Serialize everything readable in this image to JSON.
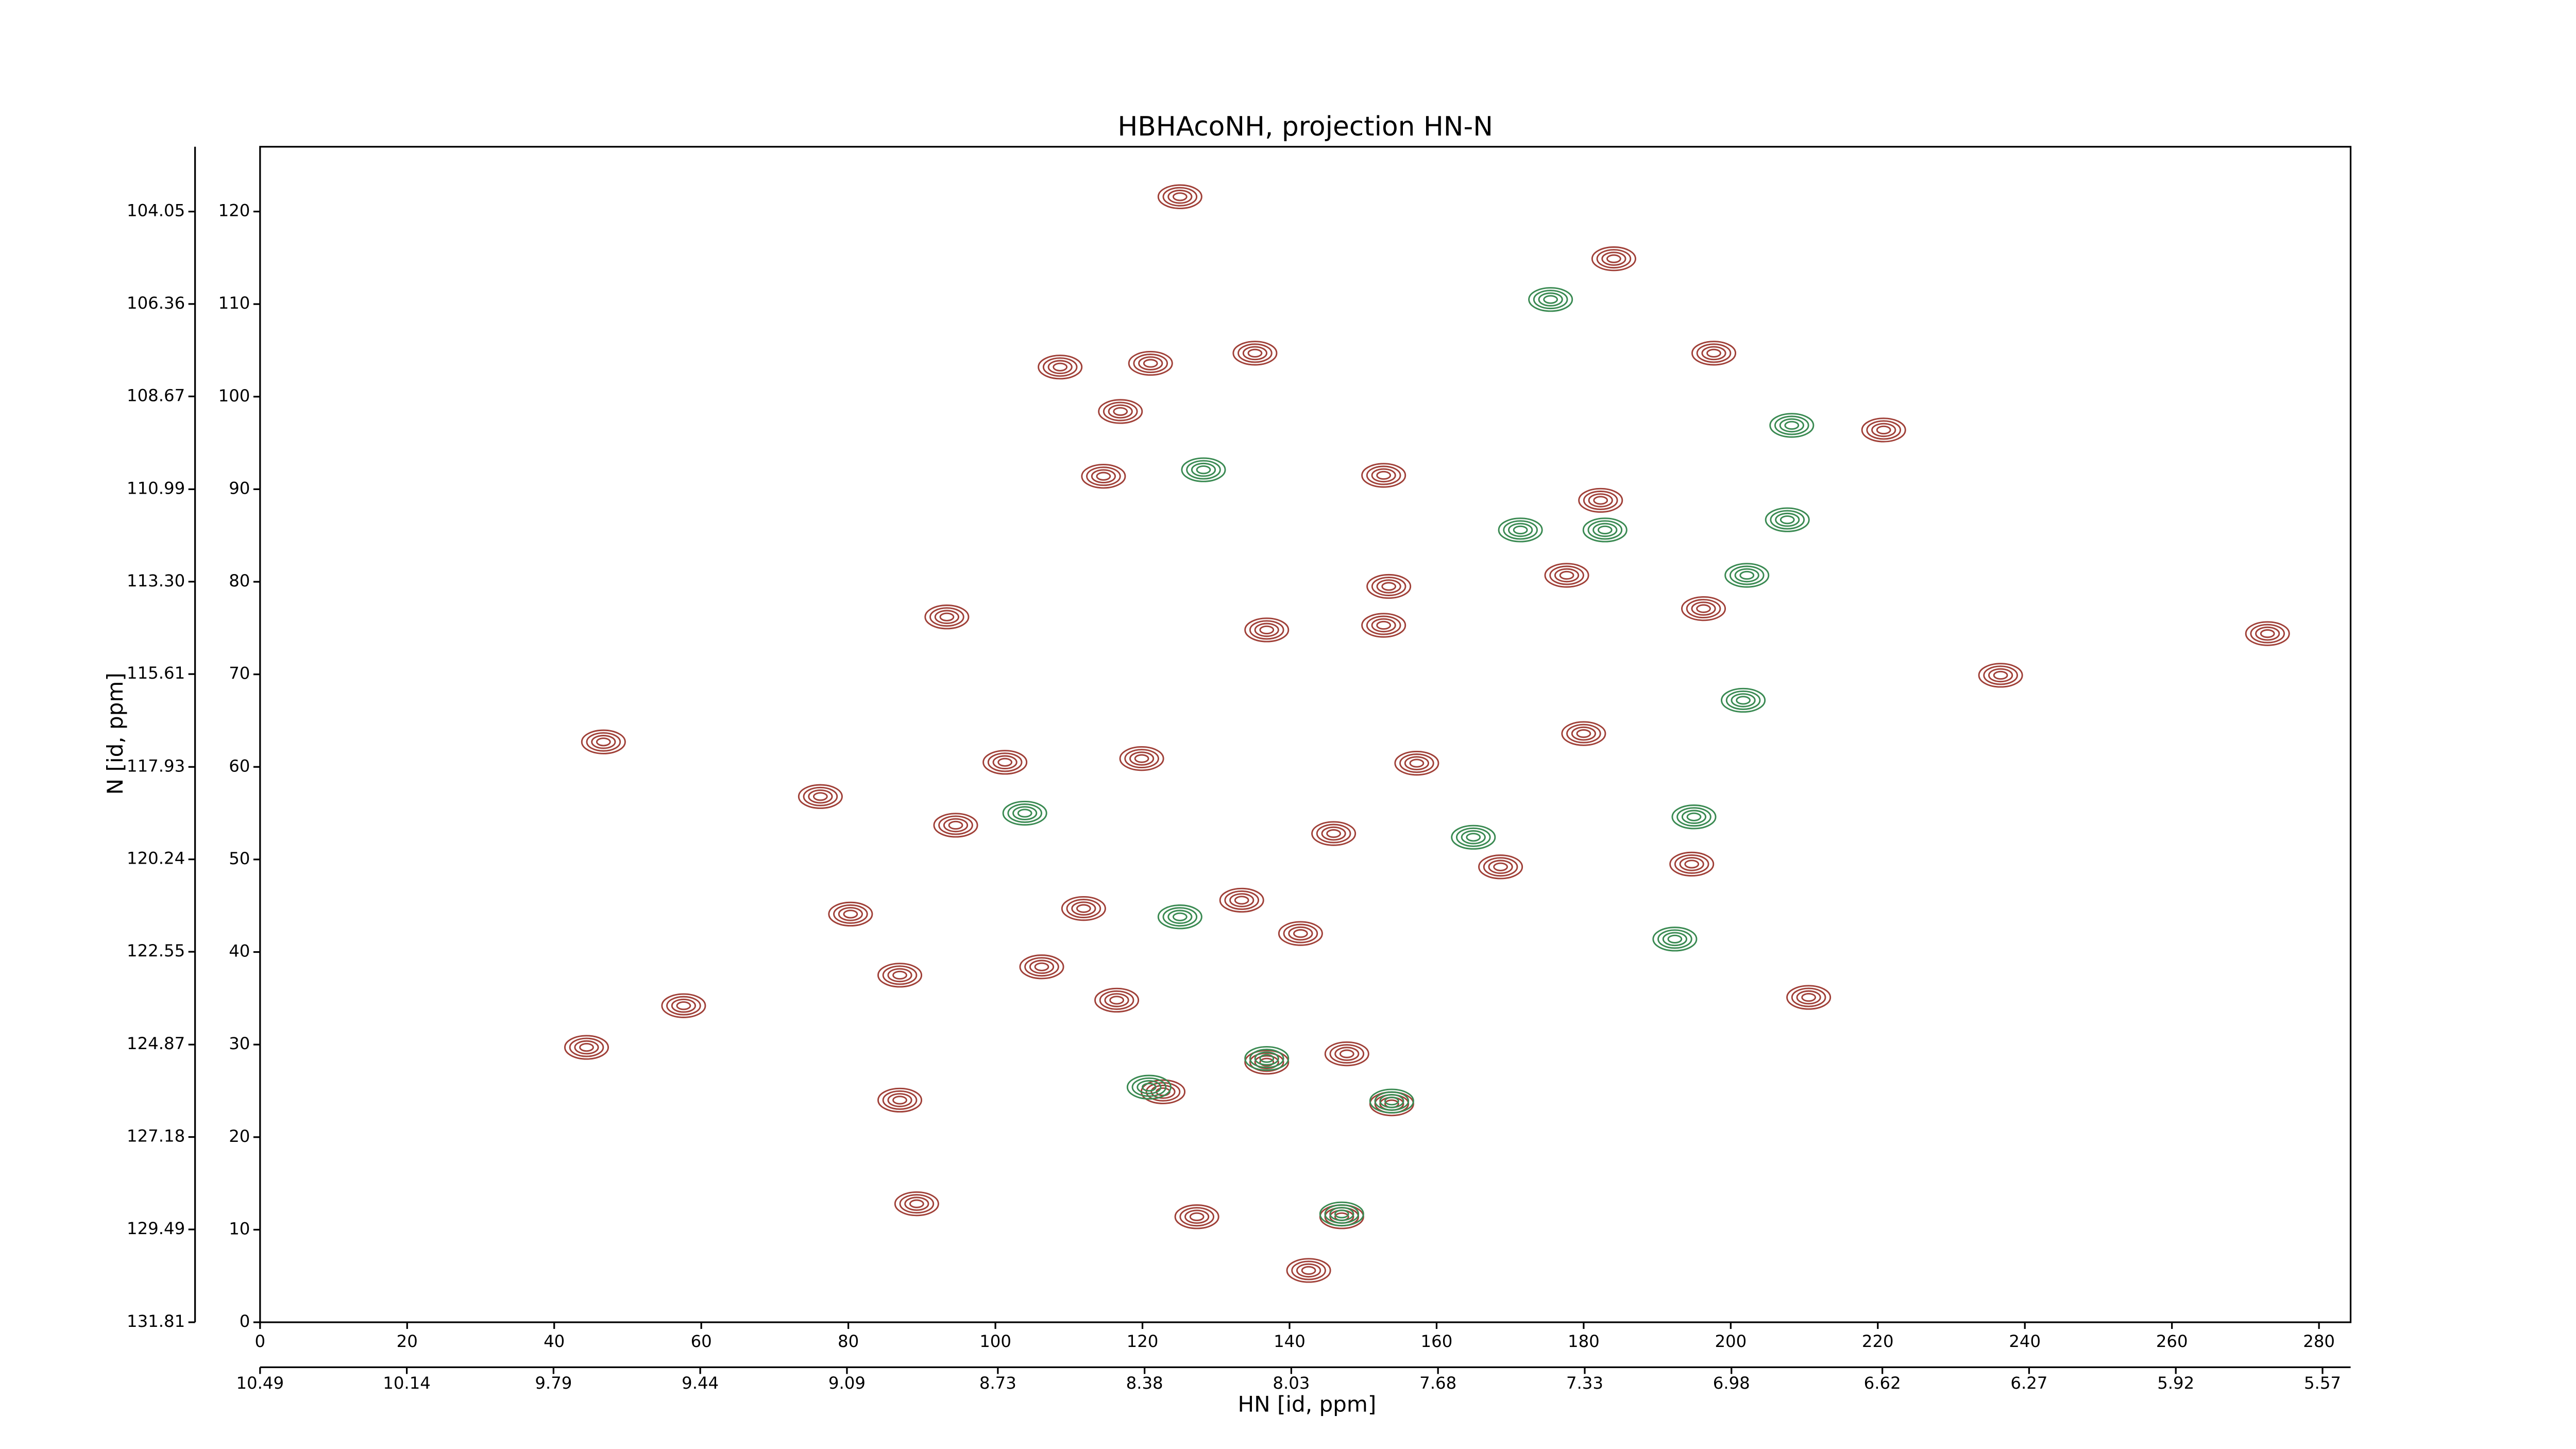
{
  "chart_data": {
    "type": "contour",
    "title": "HBHAcoNH, projection HN-N",
    "xlabel": "HN [id, ppm]",
    "ylabel": "N [id, ppm]",
    "xlim": [
      0,
      284.3
    ],
    "xticks": [
      0,
      20,
      40,
      60,
      80,
      100,
      120,
      140,
      160,
      180,
      200,
      220,
      240,
      260,
      280
    ],
    "ylim": [
      0,
      127
    ],
    "yticks": [
      0,
      10,
      20,
      30,
      40,
      50,
      60,
      70,
      80,
      90,
      100,
      110,
      120
    ],
    "x2lim": [
      10.49,
      5.503
    ],
    "x2ticks": [
      10.49,
      10.14,
      9.79,
      9.44,
      9.09,
      8.73,
      8.38,
      8.03,
      7.68,
      7.33,
      6.98,
      6.62,
      6.27,
      5.92,
      5.57
    ],
    "y2lim": [
      131.81,
      102.43
    ],
    "y2ticks": [
      131.81,
      129.49,
      127.18,
      124.87,
      122.55,
      {
        "value": 120.24,
        "label": "120.24"
      },
      117.93,
      115.61,
      {
        "value": 113.3,
        "label": "113.30"
      },
      110.99,
      108.67,
      106.36,
      104.05
    ],
    "series": [
      {
        "color": "#a04038",
        "x": [
          125.1,
          184.1,
          121.1,
          108.8,
          135.3,
          197.7,
          117.0,
          220.8,
          114.7,
          152.8,
          182.3,
          153.5,
          177.7,
          196.3,
          273.0,
          236.7,
          152.8,
          93.4,
          136.9,
          180.0,
          46.7,
          76.2,
          119.9,
          157.3,
          101.3,
          94.6,
          194.7,
          168.7,
          112.0,
          133.5,
          80.3,
          106.3,
          87.0,
          116.5,
          57.6,
          210.6,
          44.4,
          87.0,
          122.8,
          136.9,
          147.8,
          153.9,
          127.4,
          147.1,
          142.6,
          89.3,
          141.5,
          146.0
        ],
        "y": [
          121.6,
          114.9,
          103.6,
          103.2,
          104.7,
          104.7,
          98.4,
          96.4,
          91.4,
          91.5,
          88.8,
          79.5,
          80.7,
          77.1,
          74.4,
          69.9,
          75.3,
          76.2,
          74.8,
          63.6,
          62.7,
          56.8,
          60.9,
          60.4,
          60.5,
          53.7,
          49.5,
          49.2,
          44.7,
          45.6,
          44.1,
          38.4,
          37.5,
          34.8,
          34.2,
          35.1,
          29.7,
          24.0,
          24.9,
          28.1,
          29.0,
          23.6,
          11.4,
          11.4,
          5.6,
          12.8,
          42.0,
          52.8
        ]
      },
      {
        "color": "#3a8a52",
        "x": [
          175.5,
          128.3,
          171.4,
          182.9,
          208.3,
          207.7,
          202.2,
          195.0,
          165.0,
          125.1,
          192.4,
          201.7,
          104.0,
          153.9,
          147.1,
          136.9,
          120.9
        ],
        "y": [
          110.5,
          92.1,
          85.6,
          85.6,
          96.9,
          86.7,
          80.7,
          54.6,
          52.4,
          43.8,
          41.4,
          67.2,
          55.0,
          23.9,
          11.7,
          28.5,
          25.4
        ]
      }
    ]
  }
}
